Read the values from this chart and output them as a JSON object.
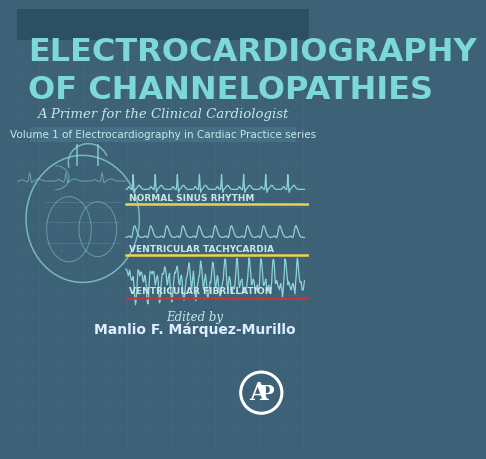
{
  "bg_color": "#3d6278",
  "bg_dark_color": "#2d4f63",
  "grid_color": "#4a7490",
  "title_line1": "ELECTROCARDIOGRAPHY",
  "title_line2": "OF CHANNELOPATHIES",
  "subtitle": "A Primer for the Clinical Cardiologist",
  "series_text": "Volume 1 of Electrocardiography in Cardiac Practice series",
  "label1": "NORMAL SINUS RHYTHM",
  "label2": "VENTRICULAR TACHYCARDIA",
  "label3": "VENTRICULAR FIBRILLATION",
  "edited_by": "Edited by",
  "editor": "Manlio F. Márquez-Murillo",
  "title_color": "#7dd8d8",
  "subtitle_color": "#c8e8e8",
  "series_color": "#c8e8e8",
  "label_color": "#c8e8e8",
  "ecg_color": "#8dd4d4",
  "line1_color": "#e8d44d",
  "line2_color": "#e8d44d",
  "line3_color": "#cc3333",
  "editor_color": "#ddeeff",
  "top_stripe_color": "#2d4f63",
  "series_bg": "#4a7a90"
}
